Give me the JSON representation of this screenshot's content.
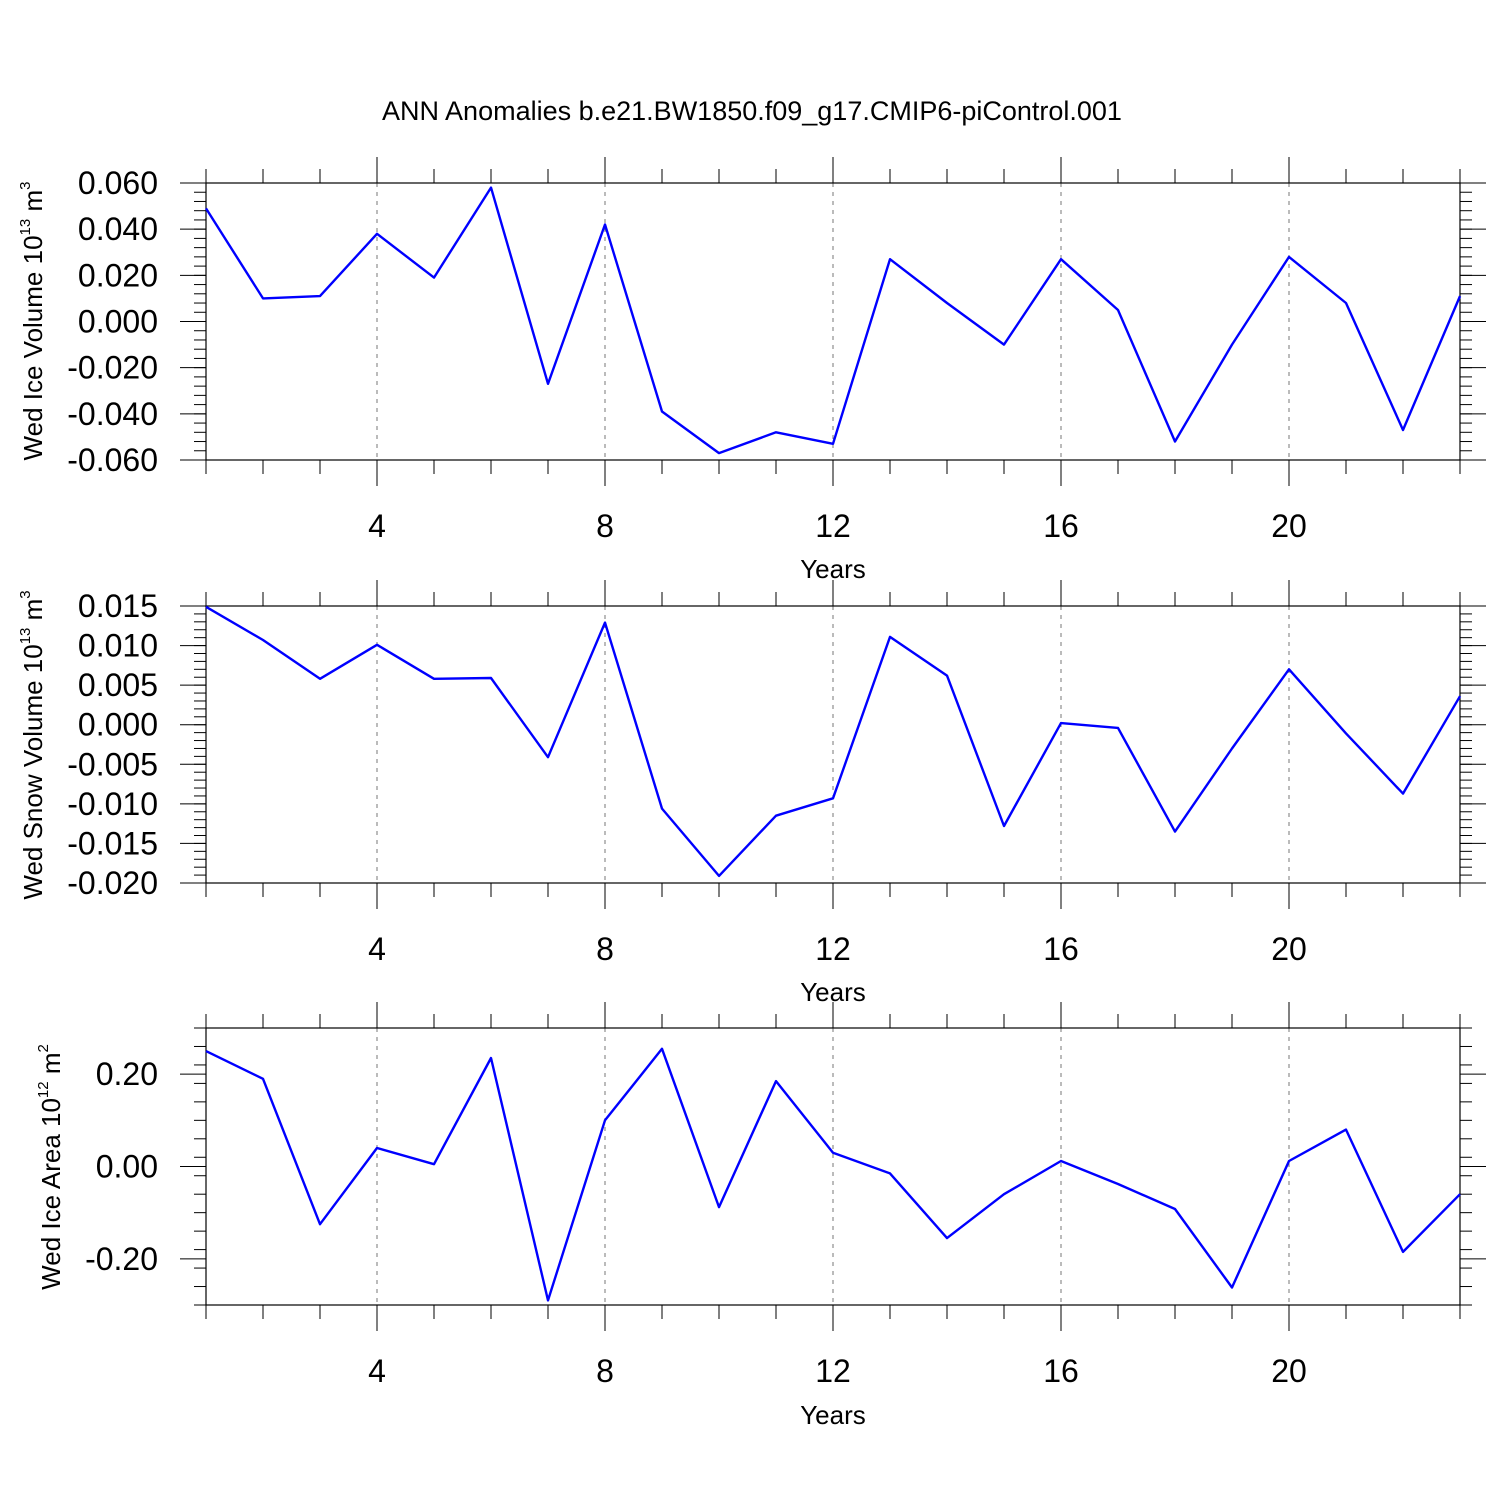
{
  "title": "ANN Anomalies b.e21.BW1850.f09_g17.CMIP6-piControl.001",
  "line_color": "#0000ff",
  "chart_data": [
    {
      "type": "line",
      "x": [
        1,
        2,
        3,
        4,
        5,
        6,
        7,
        8,
        9,
        10,
        11,
        12,
        13,
        14,
        15,
        16,
        17,
        18,
        19,
        20,
        21,
        22,
        23
      ],
      "series": [
        {
          "values": [
            0.049,
            0.01,
            0.011,
            0.038,
            0.019,
            0.058,
            -0.027,
            0.042,
            -0.039,
            -0.057,
            -0.048,
            -0.053,
            0.027,
            0.008,
            -0.01,
            0.027,
            0.005,
            -0.052,
            -0.01,
            0.028,
            0.008,
            -0.047,
            0.011
          ]
        }
      ],
      "xlabel": "Years",
      "ylabel": {
        "main": "Wed Ice Volume 10",
        "exp": "13",
        "unit": " m",
        "unit_exp": "3"
      },
      "xlim": [
        1,
        23
      ],
      "ylim": [
        -0.06,
        0.06
      ],
      "xticks": [
        "4",
        "8",
        "12",
        "16",
        "20"
      ],
      "yticks": [
        "0.060",
        "0.040",
        "0.020",
        "0.000",
        "-0.020",
        "-0.040",
        "-0.060"
      ],
      "grid": "vertical dashed at major x ticks"
    },
    {
      "type": "line",
      "x": [
        1,
        2,
        3,
        4,
        5,
        6,
        7,
        8,
        9,
        10,
        11,
        12,
        13,
        14,
        15,
        16,
        17,
        18,
        19,
        20,
        21,
        22,
        23
      ],
      "series": [
        {
          "values": [
            0.0149,
            0.0107,
            0.0058,
            0.0101,
            0.0058,
            0.0059,
            -0.0041,
            0.0129,
            -0.0106,
            -0.0191,
            -0.0115,
            -0.0093,
            0.0111,
            0.0062,
            -0.0128,
            0.0002,
            -0.0004,
            -0.0135,
            -0.003,
            0.007,
            -0.0011,
            -0.0087,
            0.0036
          ]
        }
      ],
      "xlabel": "Years",
      "ylabel": {
        "main": "Wed Snow Volume 10",
        "exp": "13",
        "unit": " m",
        "unit_exp": "3"
      },
      "xlim": [
        1,
        23
      ],
      "ylim": [
        -0.02,
        0.015
      ],
      "xticks": [
        "4",
        "8",
        "12",
        "16",
        "20"
      ],
      "yticks": [
        "0.015",
        "0.010",
        "0.005",
        "0.000",
        "-0.005",
        "-0.010",
        "-0.015",
        "-0.020"
      ],
      "grid": "vertical dashed at major x ticks"
    },
    {
      "type": "line",
      "x": [
        1,
        2,
        3,
        4,
        5,
        6,
        7,
        8,
        9,
        10,
        11,
        12,
        13,
        14,
        15,
        16,
        17,
        18,
        19,
        20,
        21,
        22,
        23
      ],
      "series": [
        {
          "values": [
            0.25,
            0.19,
            -0.125,
            0.04,
            0.005,
            0.235,
            -0.29,
            0.1,
            0.255,
            -0.088,
            0.185,
            0.03,
            -0.015,
            -0.155,
            -0.06,
            0.012,
            -0.038,
            -0.092,
            -0.262,
            0.012,
            0.08,
            -0.185,
            -0.06
          ]
        }
      ],
      "xlabel": "Years",
      "ylabel": {
        "main": "Wed Ice Area 10",
        "exp": "12",
        "unit": " m",
        "unit_exp": "2"
      },
      "xlim": [
        1,
        23
      ],
      "ylim": [
        -0.3,
        0.3
      ],
      "xticks": [
        "4",
        "8",
        "12",
        "16",
        "20"
      ],
      "yticks": [
        "0.20",
        "0.00",
        "-0.20"
      ],
      "grid": "vertical dashed at major x ticks"
    }
  ]
}
